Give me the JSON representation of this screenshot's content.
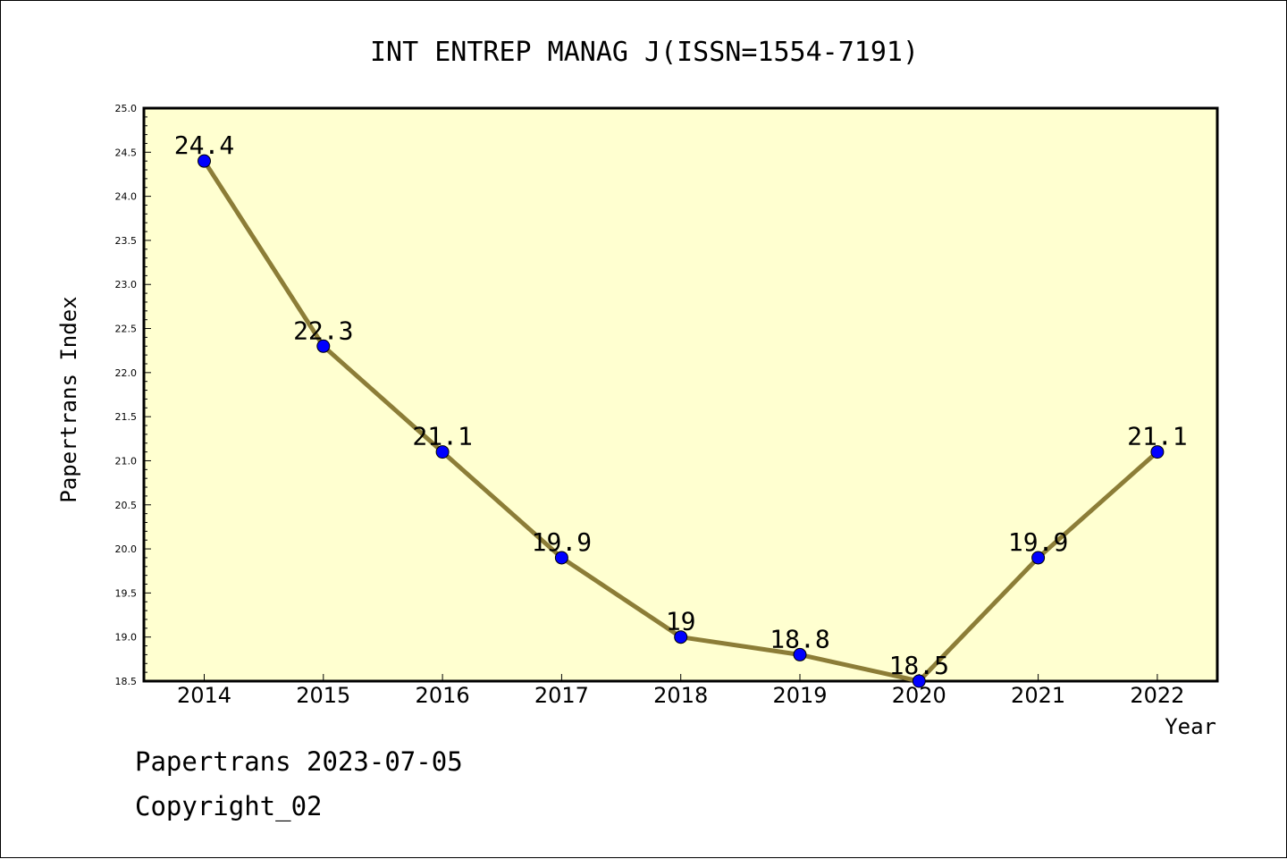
{
  "chart_data": {
    "type": "line",
    "title": "INT ENTREP MANAG J(ISSN=1554-7191)",
    "xlabel": "Year",
    "ylabel": "Papertrans Index",
    "categories": [
      "2014",
      "2015",
      "2016",
      "2017",
      "2018",
      "2019",
      "2020",
      "2021",
      "2022"
    ],
    "values": [
      24.4,
      22.3,
      21.1,
      19.9,
      19.0,
      18.8,
      18.5,
      19.9,
      21.1
    ],
    "data_labels": [
      "24.4",
      "22.3",
      "21.1",
      "19.9",
      "19",
      "18.8",
      "18.5",
      "19.9",
      "21.1"
    ],
    "ylim": [
      18.5,
      25.0
    ],
    "yticks": [
      "18.5",
      "19.0",
      "19.5",
      "20.0",
      "20.5",
      "21.0",
      "21.5",
      "22.0",
      "22.5",
      "23.0",
      "23.5",
      "24.0",
      "24.5",
      "25.0"
    ],
    "grid": false,
    "colors": {
      "plot_background": "#ffffd0",
      "line": "#8c7d37",
      "marker": "#0000ff"
    }
  },
  "footer": {
    "date_line": "Papertrans 2023-07-05",
    "copyright": "Copyright_02"
  }
}
